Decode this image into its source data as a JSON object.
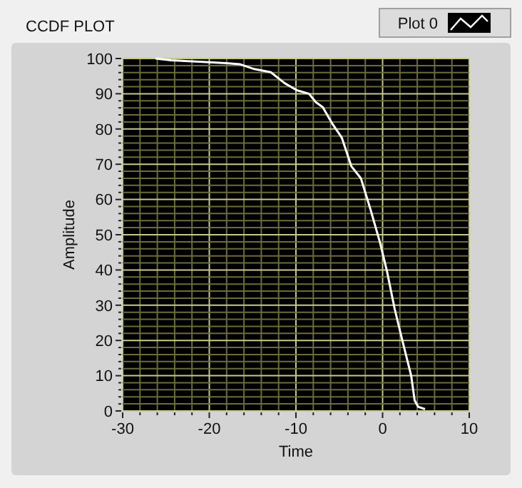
{
  "chart_data": {
    "type": "line",
    "title": "CCDF PLOT",
    "xlabel": "Time",
    "ylabel": "Amplitude",
    "xlim": [
      -30,
      10
    ],
    "xticks": [
      -30,
      {
        "value": -28,
        "label": null
      },
      {
        "value": -26,
        "label": null
      },
      {
        "value": -24,
        "label": null
      },
      {
        "value": -22,
        "label": null
      },
      -20,
      {
        "value": -18,
        "label": null
      },
      {
        "value": -16,
        "label": null
      },
      {
        "value": -14,
        "label": null
      },
      {
        "value": -12,
        "label": null
      },
      -10,
      {
        "value": -8,
        "label": null
      },
      {
        "value": -6,
        "label": null
      },
      {
        "value": -4,
        "label": null
      },
      {
        "value": -2,
        "label": null
      },
      0,
      {
        "value": 2,
        "label": null
      },
      {
        "value": 4,
        "label": null
      },
      {
        "value": 6,
        "label": null
      },
      {
        "value": 8,
        "label": null
      },
      10
    ],
    "ylim": [
      0,
      100
    ],
    "yticks": [
      0,
      {
        "value": 2,
        "label": null
      },
      {
        "value": 4,
        "label": null
      },
      {
        "value": 6,
        "label": null
      },
      {
        "value": 8,
        "label": null
      },
      10,
      {
        "value": 12,
        "label": null
      },
      {
        "value": 14,
        "label": null
      },
      {
        "value": 16,
        "label": null
      },
      {
        "value": 18,
        "label": null
      },
      20,
      {
        "value": 22,
        "label": null
      },
      {
        "value": 24,
        "label": null
      },
      {
        "value": 26,
        "label": null
      },
      {
        "value": 28,
        "label": null
      },
      30,
      {
        "value": 32,
        "label": null
      },
      {
        "value": 34,
        "label": null
      },
      {
        "value": 36,
        "label": null
      },
      {
        "value": 38,
        "label": null
      },
      40,
      {
        "value": 42,
        "label": null
      },
      {
        "value": 44,
        "label": null
      },
      {
        "value": 46,
        "label": null
      },
      {
        "value": 48,
        "label": null
      },
      50,
      {
        "value": 52,
        "label": null
      },
      {
        "value": 54,
        "label": null
      },
      {
        "value": 56,
        "label": null
      },
      {
        "value": 58,
        "label": null
      },
      60,
      {
        "value": 62,
        "label": null
      },
      {
        "value": 64,
        "label": null
      },
      {
        "value": 66,
        "label": null
      },
      {
        "value": 68,
        "label": null
      },
      70,
      {
        "value": 72,
        "label": null
      },
      {
        "value": 74,
        "label": null
      },
      {
        "value": 76,
        "label": null
      },
      {
        "value": 78,
        "label": null
      },
      80,
      {
        "value": 82,
        "label": null
      },
      {
        "value": 84,
        "label": null
      },
      {
        "value": 86,
        "label": null
      },
      {
        "value": 88,
        "label": null
      },
      90,
      {
        "value": 92,
        "label": null
      },
      {
        "value": 94,
        "label": null
      },
      {
        "value": 96,
        "label": null
      },
      {
        "value": 98,
        "label": null
      },
      100
    ],
    "grid": true,
    "legend": "top right",
    "marker": "none",
    "line_style": "solid",
    "series": [
      {
        "name": "Plot 0",
        "color": "#ffffff",
        "x": [
          -26.2,
          -24.4,
          -21.1,
          -18.1,
          -16.5,
          -14.8,
          -12.9,
          -11.3,
          -9.9,
          -8.5,
          -7.7,
          -6.9,
          -5.8,
          -4.7,
          -3.6,
          -2.5,
          -1.4,
          -0.3,
          0.5,
          1.4,
          2.2,
          3.3,
          3.7,
          4.1,
          4.9
        ],
        "values": [
          100,
          99.5,
          99.1,
          98.7,
          98.4,
          97,
          96.1,
          93,
          91,
          90,
          87.6,
          86.2,
          81.5,
          77.5,
          69.4,
          66,
          57.2,
          47.8,
          39.7,
          28.9,
          20.8,
          10,
          3,
          1.2,
          0.5
        ]
      }
    ]
  }
}
